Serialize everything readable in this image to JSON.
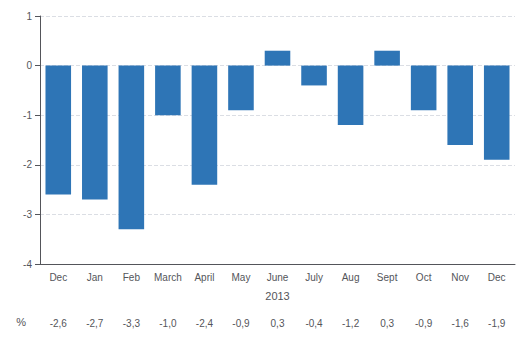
{
  "chart_data": {
    "type": "bar",
    "categories": [
      "Dec",
      "Jan",
      "Feb",
      "March",
      "April",
      "May",
      "June",
      "July",
      "Aug",
      "Sept",
      "Oct",
      "Nov",
      "Dec"
    ],
    "values": [
      -2.6,
      -2.7,
      -3.3,
      -1.0,
      -2.4,
      -0.9,
      0.3,
      -0.4,
      -1.2,
      0.3,
      -0.9,
      -1.6,
      -1.9
    ],
    "value_labels": [
      "-2,6",
      "-2,7",
      "-3,3",
      "-1,0",
      "-2,4",
      "-0,9",
      "0,3",
      "-0,4",
      "-1,2",
      "0,3",
      "-0,9",
      "-1,6",
      "-1,9"
    ],
    "table_label": "%",
    "xlabel": "2013",
    "color": "#2E75B6",
    "ylim": [
      -4,
      1
    ],
    "yticks": [
      -4,
      -3,
      -2,
      -1,
      0,
      1
    ],
    "grid": true
  }
}
